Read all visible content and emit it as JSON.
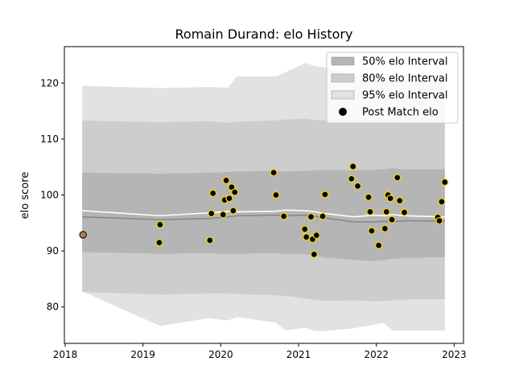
{
  "chart_data": {
    "type": "scatter",
    "title": "Romain Durand: elo History",
    "xlabel": "",
    "ylabel": "elo score",
    "xlim": [
      2017.99,
      2023.12
    ],
    "ylim": [
      73.5,
      126.5
    ],
    "xticks": [
      2018,
      2019,
      2020,
      2021,
      2022,
      2023
    ],
    "yticks": [
      80,
      90,
      100,
      110,
      120
    ],
    "grid": false,
    "legend_position": "top-right",
    "legend": [
      {
        "label": "50% elo Interval",
        "kind": "band",
        "color": "#b5b5b5"
      },
      {
        "label": "80% elo Interval",
        "kind": "band",
        "color": "#cdcdcd"
      },
      {
        "label": "95% elo Interval",
        "kind": "band",
        "color": "#e2e2e2"
      },
      {
        "label": "Post Match elo",
        "kind": "marker",
        "color": "#000000"
      }
    ],
    "x": [
      2018.22,
      2019.22,
      2019.84,
      2020.09,
      2020.21,
      2020.71,
      2020.83,
      2021.09,
      2021.21,
      2021.34,
      2021.71,
      2021.96,
      2022.09,
      2022.21,
      2022.34,
      2022.59,
      2022.84,
      2022.88
    ],
    "median": [
      96.1,
      95.6,
      95.8,
      96.1,
      96.3,
      96.4,
      96.3,
      96.4,
      96.2,
      95.9,
      95.2,
      95.2,
      95.3,
      95.2,
      95.4,
      95.4,
      95.3,
      95.3
    ],
    "mean": [
      97.2,
      96.3,
      96.8,
      97.1,
      97.0,
      97.1,
      97.3,
      97.2,
      97.0,
      96.7,
      96.1,
      96.4,
      96.3,
      96.5,
      96.3,
      96.2,
      96.1,
      96.1
    ],
    "band_50": {
      "lower": [
        89.8,
        89.5,
        89.6,
        89.4,
        89.5,
        89.6,
        89.5,
        89.4,
        89.2,
        88.8,
        88.4,
        88.2,
        88.4,
        88.6,
        88.7,
        88.8,
        88.9,
        88.9
      ],
      "upper": [
        104.0,
        103.8,
        104.0,
        104.1,
        104.2,
        104.3,
        104.2,
        104.3,
        104.4,
        104.5,
        104.4,
        104.5,
        104.6,
        104.8,
        104.6,
        104.6,
        104.6,
        104.6
      ]
    },
    "band_80": {
      "lower": [
        82.7,
        82.2,
        82.4,
        82.4,
        82.3,
        82.1,
        82.0,
        81.5,
        81.3,
        81.1,
        81.2,
        81.0,
        81.1,
        81.2,
        81.3,
        81.4,
        81.4,
        81.4
      ],
      "upper": [
        113.3,
        113.0,
        113.2,
        112.9,
        113.1,
        113.3,
        113.5,
        113.6,
        113.4,
        113.3,
        113.4,
        113.3,
        113.4,
        113.3,
        113.2,
        113.1,
        113.1,
        113.1
      ]
    },
    "band_95": {
      "lower": [
        82.8,
        76.6,
        78.0,
        77.6,
        78.2,
        77.2,
        75.8,
        76.3,
        75.7,
        75.7,
        76.2,
        76.8,
        77.2,
        75.8,
        75.8,
        75.8,
        75.8,
        75.8
      ],
      "upper": [
        119.5,
        119.1,
        119.3,
        119.2,
        121.2,
        121.2,
        121.9,
        123.6,
        123.0,
        122.8,
        121.3,
        121.2,
        120.6,
        120.6,
        120.6,
        120.6,
        120.6,
        120.6
      ]
    },
    "post_match_points": [
      {
        "x": 2018.23,
        "y": 92.9,
        "first": true
      },
      {
        "x": 2019.21,
        "y": 91.5
      },
      {
        "x": 2019.22,
        "y": 94.7
      },
      {
        "x": 2019.86,
        "y": 91.9
      },
      {
        "x": 2019.88,
        "y": 96.7
      },
      {
        "x": 2019.9,
        "y": 100.3
      },
      {
        "x": 2020.03,
        "y": 96.5
      },
      {
        "x": 2020.05,
        "y": 99.1
      },
      {
        "x": 2020.07,
        "y": 102.6
      },
      {
        "x": 2020.11,
        "y": 99.4
      },
      {
        "x": 2020.14,
        "y": 101.4
      },
      {
        "x": 2020.16,
        "y": 97.2
      },
      {
        "x": 2020.18,
        "y": 100.5
      },
      {
        "x": 2020.68,
        "y": 104.0
      },
      {
        "x": 2020.71,
        "y": 100.0
      },
      {
        "x": 2020.81,
        "y": 96.2
      },
      {
        "x": 2021.08,
        "y": 93.9
      },
      {
        "x": 2021.1,
        "y": 92.5
      },
      {
        "x": 2021.16,
        "y": 96.1
      },
      {
        "x": 2021.18,
        "y": 92.1
      },
      {
        "x": 2021.2,
        "y": 89.4
      },
      {
        "x": 2021.23,
        "y": 92.8
      },
      {
        "x": 2021.31,
        "y": 96.2
      },
      {
        "x": 2021.34,
        "y": 100.1
      },
      {
        "x": 2021.68,
        "y": 102.9
      },
      {
        "x": 2021.7,
        "y": 105.1
      },
      {
        "x": 2021.76,
        "y": 101.6
      },
      {
        "x": 2021.9,
        "y": 99.6
      },
      {
        "x": 2021.92,
        "y": 97.0
      },
      {
        "x": 2021.94,
        "y": 93.6
      },
      {
        "x": 2022.03,
        "y": 91.0
      },
      {
        "x": 2022.11,
        "y": 94.0
      },
      {
        "x": 2022.13,
        "y": 97.0
      },
      {
        "x": 2022.15,
        "y": 100.0
      },
      {
        "x": 2022.18,
        "y": 99.4
      },
      {
        "x": 2022.2,
        "y": 95.6
      },
      {
        "x": 2022.27,
        "y": 103.1
      },
      {
        "x": 2022.3,
        "y": 99.0
      },
      {
        "x": 2022.36,
        "y": 96.9
      },
      {
        "x": 2022.79,
        "y": 96.0
      },
      {
        "x": 2022.81,
        "y": 95.4
      },
      {
        "x": 2022.84,
        "y": 98.8
      },
      {
        "x": 2022.88,
        "y": 102.3
      }
    ],
    "colors": {
      "band_50": "#b5b5b5",
      "band_80": "#cdcdcd",
      "band_95": "#e2e2e2",
      "median_line": "#888888",
      "mean_line": "#ffffff",
      "point_fill": "#000000",
      "point_edge": "#f2d60f",
      "first_point_fill": "#b07a48"
    }
  }
}
